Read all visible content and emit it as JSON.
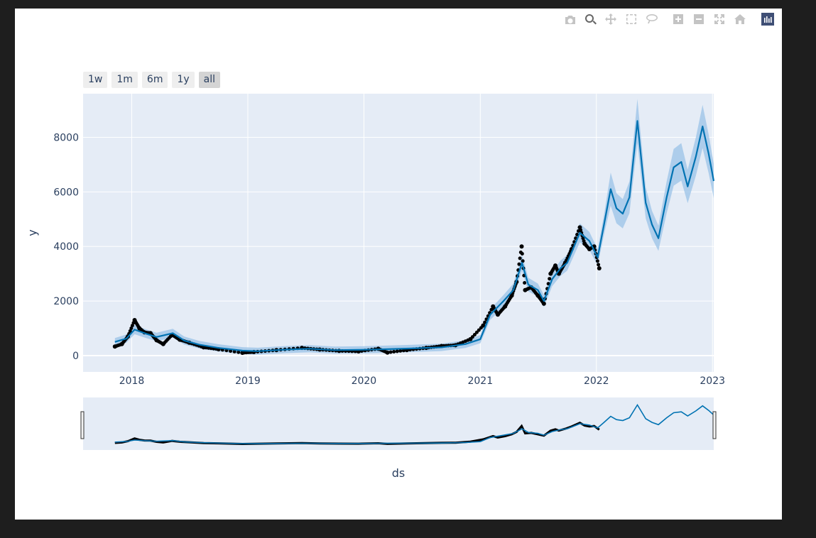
{
  "modebar": {
    "buttons": [
      {
        "name": "camera-icon",
        "active": false
      },
      {
        "name": "zoom-icon",
        "active": true
      },
      {
        "name": "pan-icon",
        "active": false
      },
      {
        "name": "box-select-icon",
        "active": false
      },
      {
        "name": "lasso-select-icon",
        "active": false
      },
      {
        "name": "zoom-in-icon",
        "active": false
      },
      {
        "name": "zoom-out-icon",
        "active": false
      },
      {
        "name": "autoscale-icon",
        "active": false
      },
      {
        "name": "reset-axes-icon",
        "active": false
      },
      {
        "name": "plotly-logo-icon",
        "active": false
      }
    ]
  },
  "range_selector": {
    "buttons": [
      {
        "label": "1w",
        "active": false
      },
      {
        "label": "1m",
        "active": false
      },
      {
        "label": "6m",
        "active": false
      },
      {
        "label": "1y",
        "active": false
      },
      {
        "label": "all",
        "active": true
      }
    ]
  },
  "colors": {
    "plot_bg": "#e5ecf6",
    "grid": "#ffffff",
    "forecast_line": "#0072b2",
    "uncertainty_band": "#9fc5e8",
    "actual_points": "#000000"
  },
  "chart_data": {
    "type": "line",
    "title": "",
    "xlabel": "ds",
    "ylabel": "y",
    "x_axis": {
      "type": "date",
      "range": [
        "2017-08-01",
        "2023-01-05"
      ],
      "tick_labels": [
        "2018",
        "2019",
        "2020",
        "2021",
        "2022",
        "2023"
      ]
    },
    "y_axis": {
      "range": [
        -600,
        9600
      ],
      "tick_values": [
        0,
        2000,
        4000,
        6000,
        8000
      ],
      "tick_labels": [
        "0",
        "2000",
        "4000",
        "6000",
        "8000"
      ]
    },
    "grid": true,
    "rangeslider": true,
    "series": [
      {
        "kind": "forecast",
        "x": [
          "2017-11-09",
          "2017-12-15",
          "2018-01-10",
          "2018-02-15",
          "2018-03-20",
          "2018-05-10",
          "2018-06-15",
          "2018-08-01",
          "2018-10-01",
          "2018-12-15",
          "2019-02-01",
          "2019-05-01",
          "2019-07-15",
          "2019-10-01",
          "2019-12-15",
          "2020-03-01",
          "2020-06-01",
          "2020-09-01",
          "2020-11-15",
          "2021-01-01",
          "2021-02-01",
          "2021-03-15",
          "2021-04-15",
          "2021-05-12",
          "2021-06-01",
          "2021-07-01",
          "2021-07-20",
          "2021-08-15",
          "2021-09-10",
          "2021-10-01",
          "2021-11-10",
          "2021-12-10",
          "2022-01-05",
          "2022-01-25",
          "2022-02-15",
          "2022-03-05",
          "2022-03-25",
          "2022-04-15",
          "2022-05-10",
          "2022-06-05",
          "2022-06-25",
          "2022-07-15",
          "2022-08-10",
          "2022-09-01",
          "2022-09-25",
          "2022-10-15",
          "2022-11-10",
          "2022-12-01",
          "2022-12-20",
          "2023-01-05"
        ],
        "y": [
          500,
          620,
          950,
          800,
          680,
          820,
          550,
          400,
          280,
          180,
          160,
          220,
          250,
          200,
          210,
          230,
          260,
          300,
          420,
          600,
          1500,
          2000,
          2400,
          3400,
          2600,
          2400,
          2000,
          2800,
          3200,
          3400,
          4500,
          4200,
          3600,
          4800,
          6100,
          5400,
          5200,
          5800,
          8600,
          5600,
          4800,
          4300,
          5800,
          6900,
          7100,
          6200,
          7300,
          8400,
          7400,
          6400
        ]
      },
      {
        "kind": "actual",
        "x": [
          "2017-11-09",
          "2017-12-01",
          "2017-12-20",
          "2018-01-10",
          "2018-01-25",
          "2018-02-10",
          "2018-03-01",
          "2018-03-20",
          "2018-04-10",
          "2018-05-08",
          "2018-06-01",
          "2018-07-01",
          "2018-08-15",
          "2018-10-01",
          "2018-12-15",
          "2019-01-20",
          "2019-04-01",
          "2019-06-20",
          "2019-08-15",
          "2019-10-15",
          "2019-12-15",
          "2020-02-15",
          "2020-03-15",
          "2020-05-15",
          "2020-07-15",
          "2020-09-01",
          "2020-10-15",
          "2020-12-01",
          "2021-01-10",
          "2021-02-10",
          "2021-02-25",
          "2021-03-20",
          "2021-04-10",
          "2021-04-25",
          "2021-05-11",
          "2021-05-22",
          "2021-06-10",
          "2021-07-01",
          "2021-07-20",
          "2021-08-10",
          "2021-08-25",
          "2021-09-05",
          "2021-09-25",
          "2021-10-15",
          "2021-11-10",
          "2021-11-25",
          "2021-12-10",
          "2021-12-25",
          "2022-01-10"
        ],
        "y": [
          330,
          420,
          700,
          1300,
          1000,
          850,
          820,
          560,
          420,
          760,
          580,
          470,
          300,
          230,
          100,
          130,
          200,
          280,
          220,
          170,
          150,
          250,
          110,
          200,
          280,
          350,
          380,
          600,
          1100,
          1800,
          1500,
          1800,
          2200,
          2700,
          4000,
          2400,
          2500,
          2200,
          1900,
          3000,
          3300,
          3000,
          3400,
          3900,
          4700,
          4100,
          3900,
          4000,
          3200
        ]
      }
    ]
  }
}
